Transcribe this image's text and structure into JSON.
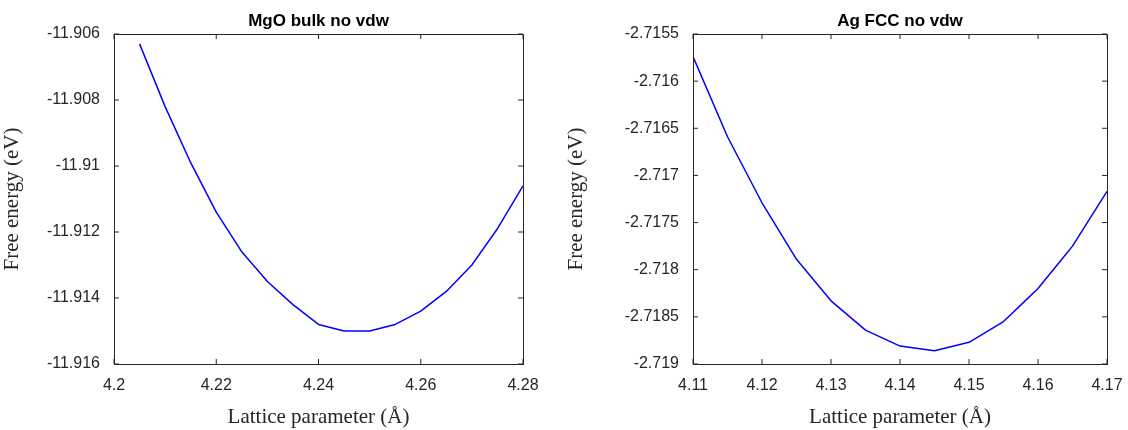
{
  "chart_data": [
    {
      "type": "line",
      "title": "MgO bulk no vdw",
      "xlabel": "Lattice parameter (Å)",
      "ylabel": "Free energy (eV)",
      "x": [
        4.205,
        4.21,
        4.215,
        4.22,
        4.225,
        4.23,
        4.235,
        4.24,
        4.245,
        4.25,
        4.255,
        4.26,
        4.265,
        4.27,
        4.275,
        4.28
      ],
      "series": [
        {
          "color": "#0000ff",
          "values": [
            -11.9063,
            -11.9082,
            -11.9099,
            -11.9114,
            -11.9126,
            -11.9135,
            -11.9142,
            -11.9148,
            -11.915,
            -11.915,
            -11.9148,
            -11.9144,
            -11.9138,
            -11.913,
            -11.9119,
            -11.9106
          ]
        }
      ],
      "xlim": [
        4.2,
        4.28
      ],
      "xticks": [
        4.2,
        4.22,
        4.24,
        4.26,
        4.28
      ],
      "ylim": [
        -11.916,
        -11.906
      ],
      "yticks": [
        -11.916,
        -11.914,
        -11.912,
        -11.91,
        -11.908,
        -11.906
      ],
      "grid": false,
      "legend": false,
      "marker": "none",
      "line_style": "solid"
    },
    {
      "type": "line",
      "title": "Ag FCC no vdw",
      "xlabel": "Lattice parameter (Å)",
      "ylabel": "Free energy (eV)",
      "x": [
        4.11,
        4.115,
        4.12,
        4.125,
        4.13,
        4.135,
        4.14,
        4.145,
        4.15,
        4.155,
        4.16,
        4.165,
        4.17
      ],
      "series": [
        {
          "color": "#0000ff",
          "values": [
            -2.71574,
            -2.71659,
            -2.71729,
            -2.71789,
            -2.71833,
            -2.71864,
            -2.71881,
            -2.71886,
            -2.71877,
            -2.71855,
            -2.7182,
            -2.71775,
            -2.71717
          ]
        }
      ],
      "xlim": [
        4.11,
        4.17
      ],
      "xticks": [
        4.11,
        4.12,
        4.13,
        4.14,
        4.15,
        4.16,
        4.17
      ],
      "ylim": [
        -2.719,
        -2.7155
      ],
      "yticks": [
        -2.719,
        -2.7185,
        -2.718,
        -2.7175,
        -2.717,
        -2.7165,
        -2.716,
        -2.7155
      ],
      "grid": false,
      "legend": false,
      "marker": "none",
      "line_style": "solid"
    }
  ]
}
